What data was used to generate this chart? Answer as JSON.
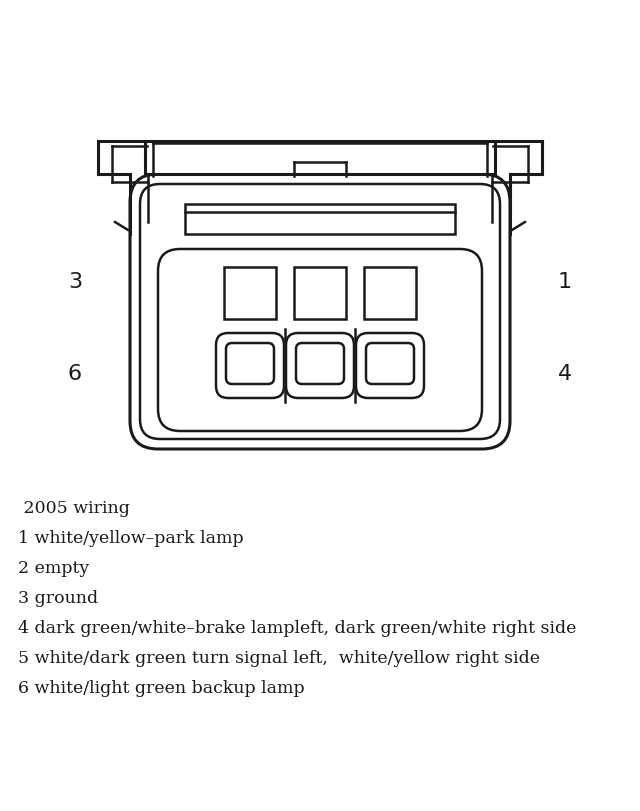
{
  "bg_color": "#ffffff",
  "line_color": "#1a1a1a",
  "figsize": [
    6.4,
    8.12
  ],
  "dpi": 100,
  "legend_lines": [
    " 2005 wiring",
    "1 white/yellow–park lamp",
    "2 empty",
    "3 ground",
    "4 dark green/white–brake lampleft, dark green/white right side",
    "5 white/dark green turn signal left,  white/yellow right side",
    "6 white/light green backup lamp"
  ]
}
